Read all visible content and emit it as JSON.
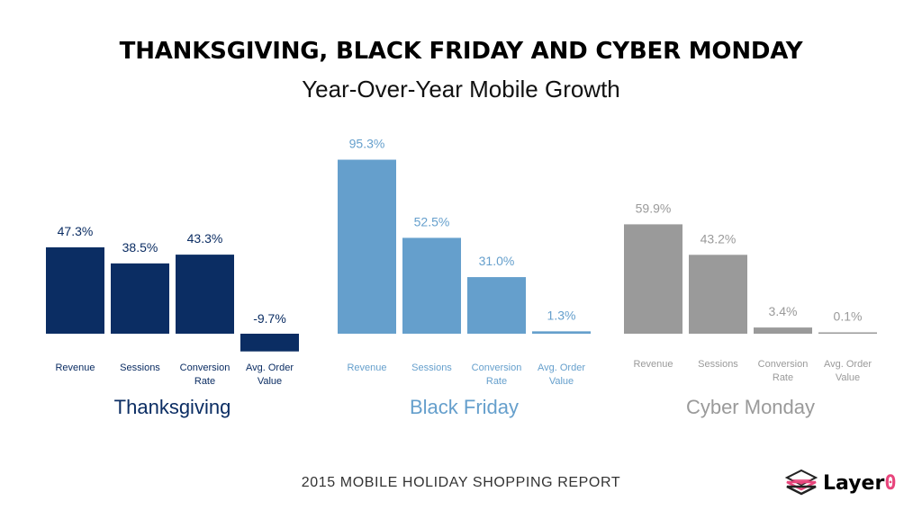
{
  "title": "THANKSGIVING, BLACK FRIDAY AND CYBER MONDAY",
  "subtitle": "Year-Over-Year Mobile Growth",
  "footer": "2015 MOBILE HOLIDAY SHOPPING REPORT",
  "logo": {
    "text_main": "Layer",
    "text_accent": "0",
    "icon": "layered-stack-icon",
    "accent_color": "#e8457c"
  },
  "chart_data": [
    {
      "type": "bar",
      "name": "Thanksgiving",
      "color": "#0b2d63",
      "categories": [
        "Revenue",
        "Sessions",
        "Conversion Rate",
        "Avg. Order Value"
      ],
      "category_lines": [
        [
          "Revenue"
        ],
        [
          "Sessions"
        ],
        [
          "Conversion",
          "Rate"
        ],
        [
          "Avg. Order",
          "Value"
        ]
      ],
      "values": [
        47.3,
        38.5,
        43.3,
        -9.7
      ],
      "labels": [
        "47.3%",
        "38.5%",
        "43.3%",
        "-9.7%"
      ]
    },
    {
      "type": "bar",
      "name": "Black Friday",
      "color": "#659fcc",
      "categories": [
        "Revenue",
        "Sessions",
        "Conversion Rate",
        "Avg. Order Value"
      ],
      "category_lines": [
        [
          "Revenue"
        ],
        [
          "Sessions"
        ],
        [
          "Conversion",
          "Rate"
        ],
        [
          "Avg. Order",
          "Value"
        ]
      ],
      "values": [
        95.3,
        52.5,
        31.0,
        1.3
      ],
      "labels": [
        "95.3%",
        "52.5%",
        "31.0%",
        "1.3%"
      ]
    },
    {
      "type": "bar",
      "name": "Cyber Monday",
      "color": "#9a9a9a",
      "categories": [
        "Revenue",
        "Sessions",
        "Conversion Rate",
        "Avg. Order Value"
      ],
      "category_lines": [
        [
          "Revenue"
        ],
        [
          "Sessions"
        ],
        [
          "Conversion",
          "Rate"
        ],
        [
          "Avg. Order",
          "Value"
        ]
      ],
      "values": [
        59.9,
        43.2,
        3.4,
        0.1
      ],
      "labels": [
        "59.9%",
        "43.2%",
        "3.4%",
        "0.1%"
      ]
    }
  ]
}
